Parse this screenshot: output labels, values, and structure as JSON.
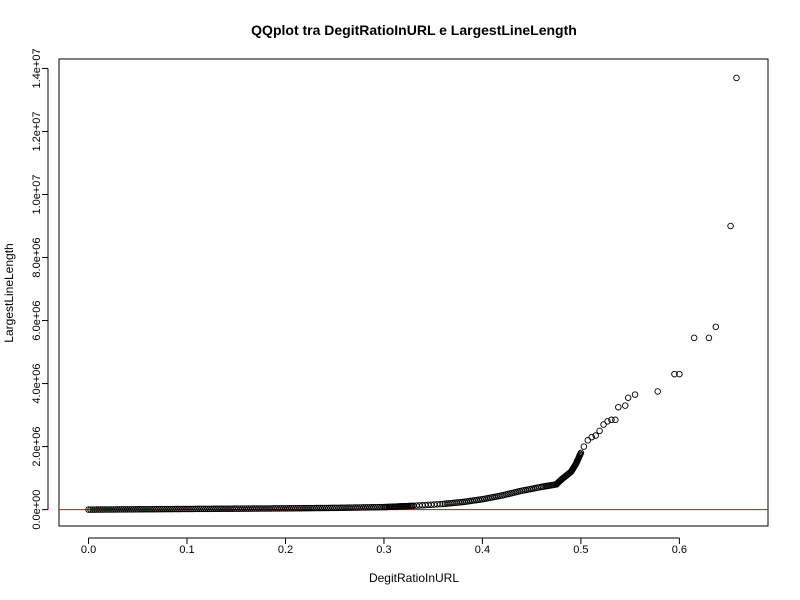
{
  "chart_data": {
    "type": "scatter",
    "title": "QQplot tra DegitRatioInURL e LargestLineLength",
    "xlabel": "DegitRatioInURL",
    "ylabel": "LargestLineLength",
    "xlim": [
      -0.03,
      0.69
    ],
    "ylim": [
      -520000,
      14300000
    ],
    "x_ticks": [
      {
        "value": 0.0,
        "label": "0.0"
      },
      {
        "value": 0.1,
        "label": "0.1"
      },
      {
        "value": 0.2,
        "label": "0.2"
      },
      {
        "value": 0.3,
        "label": "0.3"
      },
      {
        "value": 0.4,
        "label": "0.4"
      },
      {
        "value": 0.5,
        "label": "0.5"
      },
      {
        "value": 0.6,
        "label": "0.6"
      }
    ],
    "y_ticks": [
      {
        "value": 0,
        "label": "0.0e+00"
      },
      {
        "value": 2000000,
        "label": "2.0e+06"
      },
      {
        "value": 4000000,
        "label": "4.0e+06"
      },
      {
        "value": 6000000,
        "label": "6.0e+06"
      },
      {
        "value": 8000000,
        "label": "8.0e+06"
      },
      {
        "value": 10000000,
        "label": "1.0e+07"
      },
      {
        "value": 12000000,
        "label": "1.2e+07"
      },
      {
        "value": 14000000,
        "label": "1.4e+07"
      }
    ],
    "reference_line": {
      "y": 0,
      "color": "#ff0000"
    },
    "point_color": "#000000",
    "curve": [
      [
        0.0,
        0
      ],
      [
        0.05,
        10000
      ],
      [
        0.1,
        20000
      ],
      [
        0.15,
        30000
      ],
      [
        0.2,
        40000
      ],
      [
        0.25,
        55000
      ],
      [
        0.3,
        80000
      ],
      [
        0.33,
        120000
      ],
      [
        0.36,
        180000
      ],
      [
        0.38,
        240000
      ],
      [
        0.4,
        330000
      ],
      [
        0.42,
        450000
      ],
      [
        0.44,
        600000
      ],
      [
        0.46,
        720000
      ],
      [
        0.475,
        800000
      ],
      [
        0.48,
        950000
      ],
      [
        0.49,
        1200000
      ],
      [
        0.495,
        1450000
      ],
      [
        0.5,
        1800000
      ]
    ],
    "points": [
      {
        "x": 0.503,
        "y": 2000000
      },
      {
        "x": 0.507,
        "y": 2200000
      },
      {
        "x": 0.511,
        "y": 2300000
      },
      {
        "x": 0.515,
        "y": 2350000
      },
      {
        "x": 0.519,
        "y": 2500000
      },
      {
        "x": 0.523,
        "y": 2700000
      },
      {
        "x": 0.527,
        "y": 2800000
      },
      {
        "x": 0.531,
        "y": 2850000
      },
      {
        "x": 0.535,
        "y": 2850000
      },
      {
        "x": 0.538,
        "y": 3250000
      },
      {
        "x": 0.545,
        "y": 3300000
      },
      {
        "x": 0.548,
        "y": 3550000
      },
      {
        "x": 0.555,
        "y": 3650000
      },
      {
        "x": 0.578,
        "y": 3750000
      },
      {
        "x": 0.595,
        "y": 4300000
      },
      {
        "x": 0.6,
        "y": 4300000
      },
      {
        "x": 0.615,
        "y": 5450000
      },
      {
        "x": 0.63,
        "y": 5450000
      },
      {
        "x": 0.637,
        "y": 5800000
      },
      {
        "x": 0.652,
        "y": 9000000
      },
      {
        "x": 0.658,
        "y": 13700000
      }
    ]
  }
}
